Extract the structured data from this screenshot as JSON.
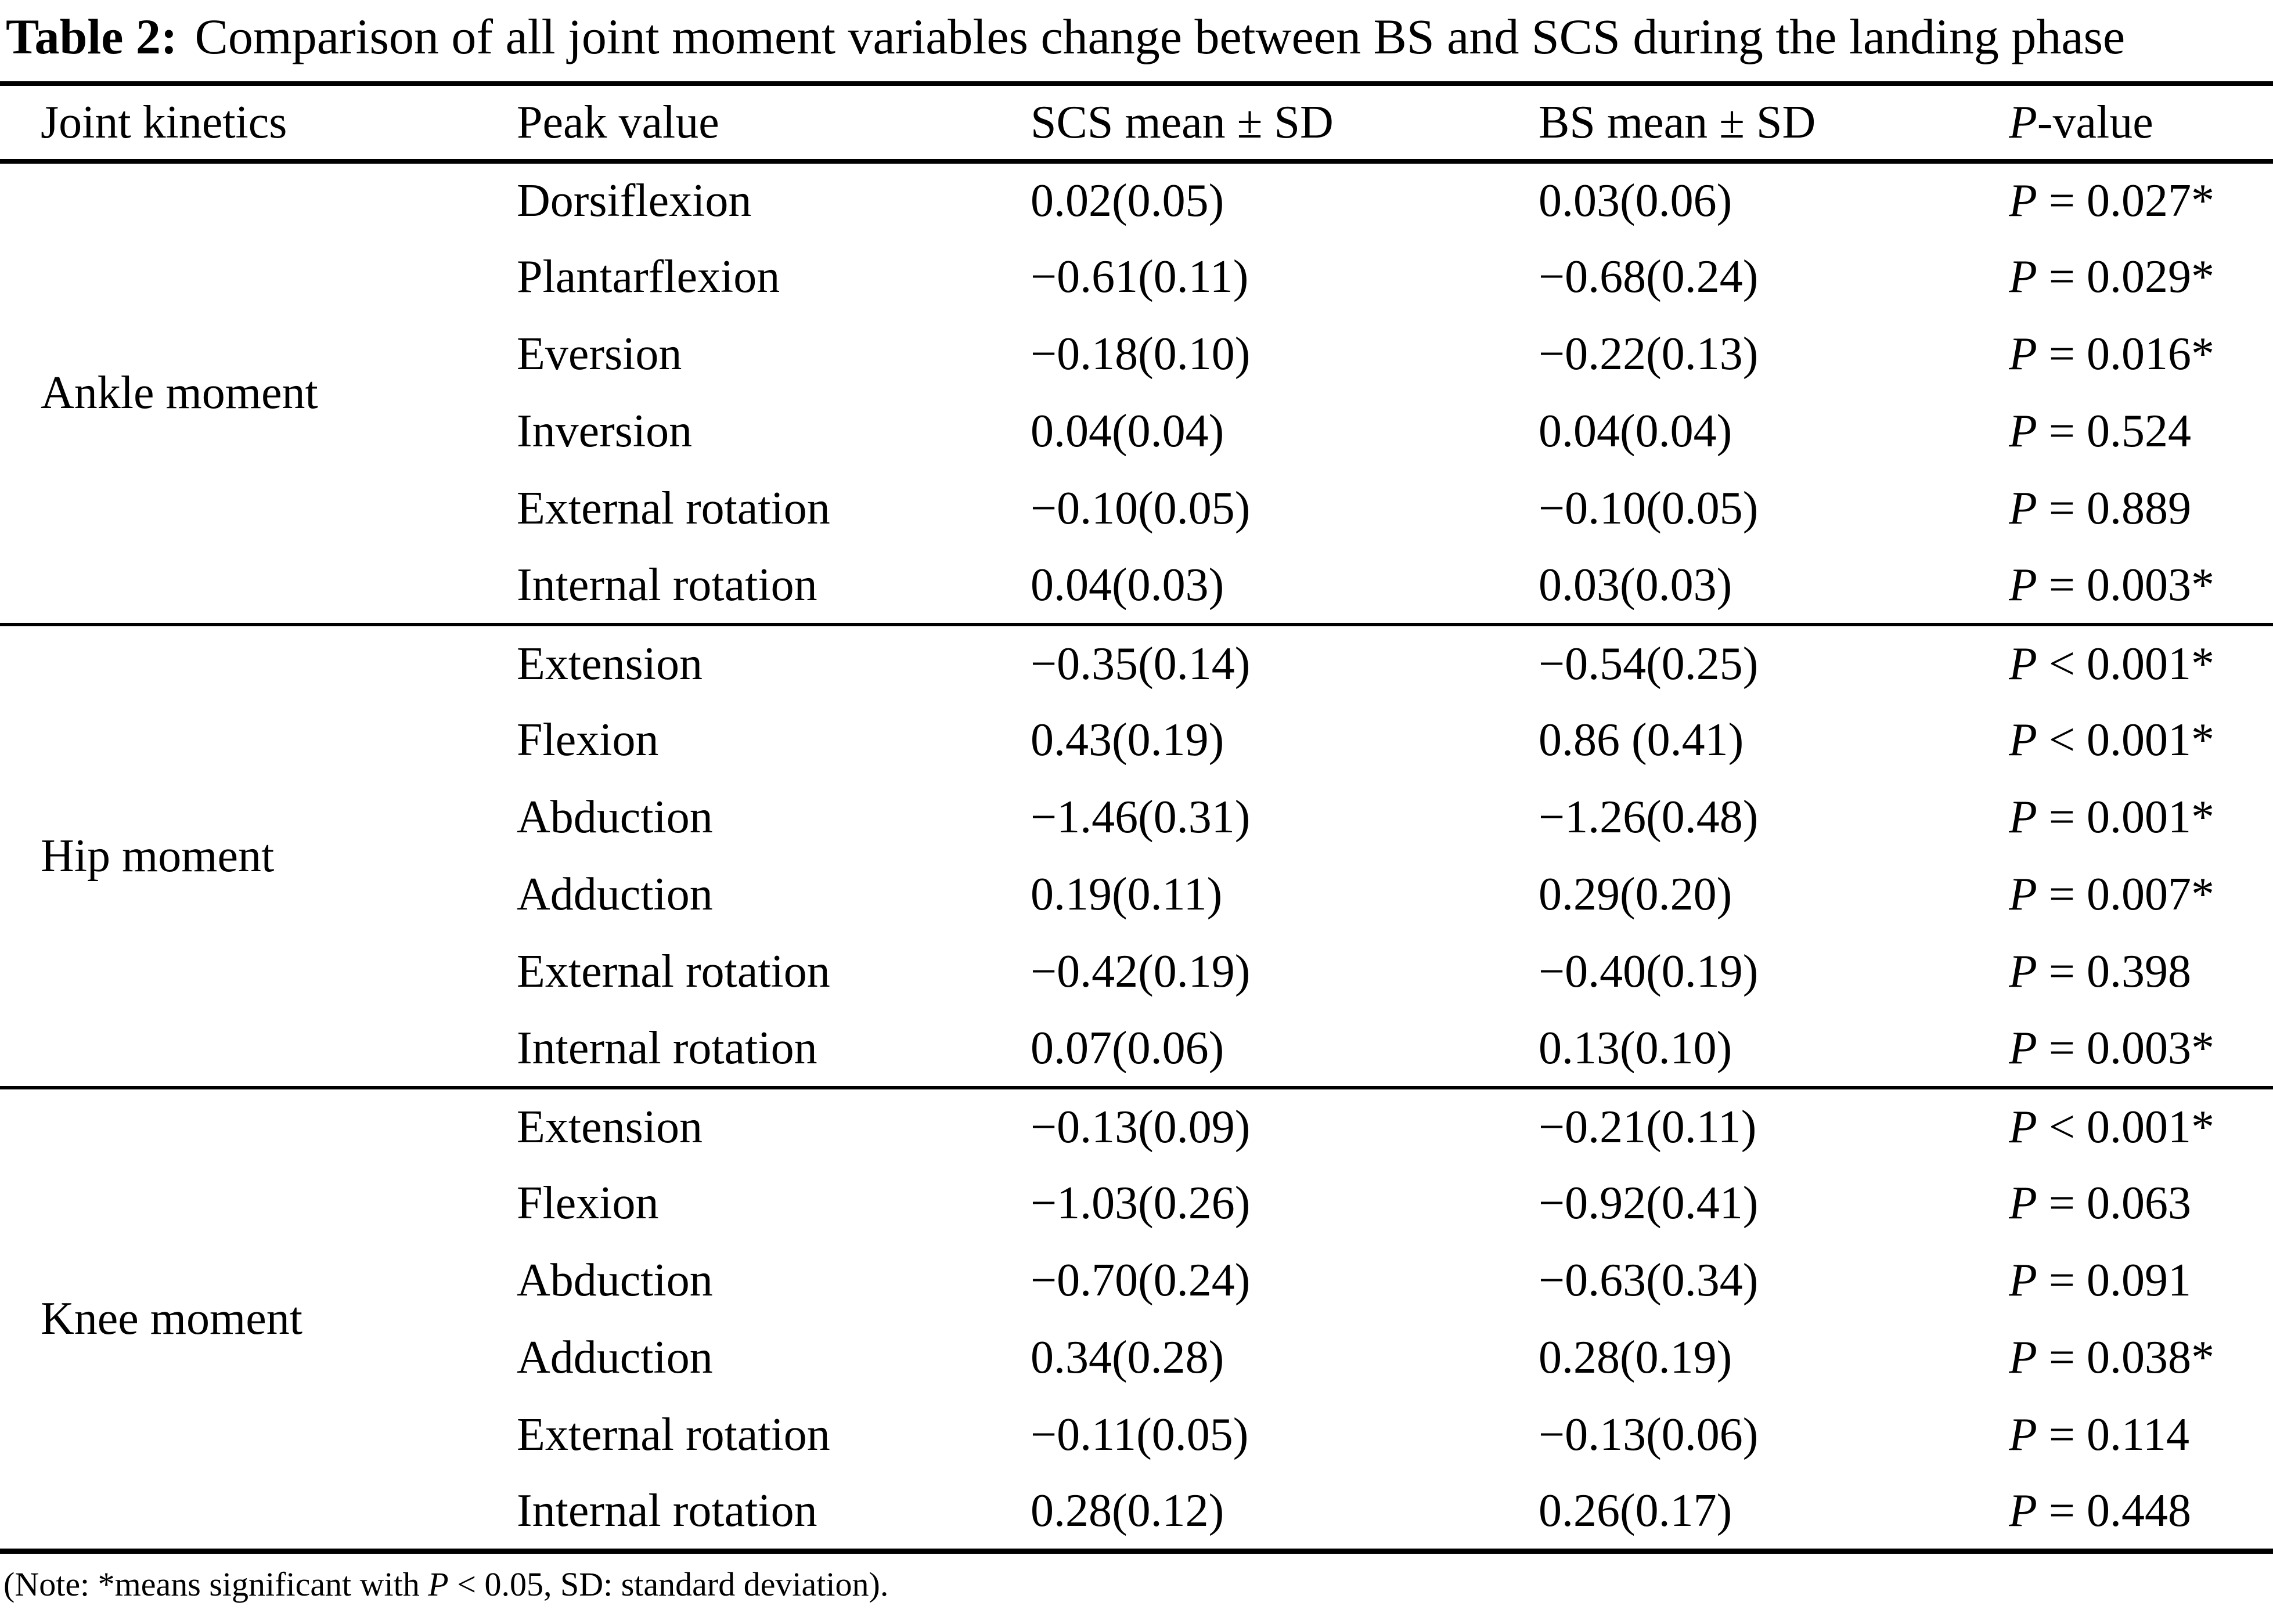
{
  "title": {
    "label": "Table 2:",
    "text": "Comparison of all joint moment variables change between BS and SCS during the landing phase"
  },
  "header": {
    "joint_kinetics": "Joint kinetics",
    "peak_value": "Peak value",
    "scs": "SCS mean ± SD",
    "bs": "BS mean ± SD",
    "p_prefix": "P",
    "p_rest": "-value"
  },
  "groups": [
    {
      "label": "Ankle moment",
      "rows": [
        {
          "peak": "Dorsiflexion",
          "scs": "0.02(0.05)",
          "bs": "0.03(0.06)",
          "p_prefix": "P",
          "p_rest": " = 0.027*"
        },
        {
          "peak": "Plantarflexion",
          "scs": "−0.61(0.11)",
          "bs": "−0.68(0.24)",
          "p_prefix": "P",
          "p_rest": " = 0.029*"
        },
        {
          "peak": "Eversion",
          "scs": "−0.18(0.10)",
          "bs": "−0.22(0.13)",
          "p_prefix": "P",
          "p_rest": " = 0.016*"
        },
        {
          "peak": "Inversion",
          "scs": "0.04(0.04)",
          "bs": "0.04(0.04)",
          "p_prefix": "P",
          "p_rest": " = 0.524"
        },
        {
          "peak": "External rotation",
          "scs": "−0.10(0.05)",
          "bs": "−0.10(0.05)",
          "p_prefix": "P",
          "p_rest": " = 0.889"
        },
        {
          "peak": "Internal rotation",
          "scs": "0.04(0.03)",
          "bs": "0.03(0.03)",
          "p_prefix": "P",
          "p_rest": " = 0.003*"
        }
      ]
    },
    {
      "label": "Hip moment",
      "rows": [
        {
          "peak": "Extension",
          "scs": "−0.35(0.14)",
          "bs": "−0.54(0.25)",
          "p_prefix": "P",
          "p_rest": " < 0.001*"
        },
        {
          "peak": "Flexion",
          "scs": "0.43(0.19)",
          "bs": "0.86 (0.41)",
          "p_prefix": "P",
          "p_rest": " < 0.001*"
        },
        {
          "peak": "Abduction",
          "scs": "−1.46(0.31)",
          "bs": "−1.26(0.48)",
          "p_prefix": "P",
          "p_rest": " = 0.001*"
        },
        {
          "peak": "Adduction",
          "scs": "0.19(0.11)",
          "bs": "0.29(0.20)",
          "p_prefix": "P",
          "p_rest": " = 0.007*"
        },
        {
          "peak": "External rotation",
          "scs": "−0.42(0.19)",
          "bs": "−0.40(0.19)",
          "p_prefix": "P",
          "p_rest": " = 0.398"
        },
        {
          "peak": "Internal rotation",
          "scs": "0.07(0.06)",
          "bs": "0.13(0.10)",
          "p_prefix": "P",
          "p_rest": " = 0.003*"
        }
      ]
    },
    {
      "label": "Knee moment",
      "rows": [
        {
          "peak": "Extension",
          "scs": "−0.13(0.09)",
          "bs": "−0.21(0.11)",
          "p_prefix": "P",
          "p_rest": " < 0.001*"
        },
        {
          "peak": "Flexion",
          "scs": "−1.03(0.26)",
          "bs": "−0.92(0.41)",
          "p_prefix": "P",
          "p_rest": " = 0.063"
        },
        {
          "peak": "Abduction",
          "scs": "−0.70(0.24)",
          "bs": "−0.63(0.34)",
          "p_prefix": "P",
          "p_rest": " = 0.091"
        },
        {
          "peak": "Adduction",
          "scs": "0.34(0.28)",
          "bs": "0.28(0.19)",
          "p_prefix": "P",
          "p_rest": " = 0.038*"
        },
        {
          "peak": "External rotation",
          "scs": "−0.11(0.05)",
          "bs": "−0.13(0.06)",
          "p_prefix": "P",
          "p_rest": " = 0.114"
        },
        {
          "peak": "Internal rotation",
          "scs": "0.28(0.12)",
          "bs": "0.26(0.17)",
          "p_prefix": "P",
          "p_rest": " = 0.448"
        }
      ]
    }
  ],
  "footnote": {
    "pre": "(Note: *means significant with ",
    "p": "P",
    "post": " < 0.05, SD: standard deviation)."
  }
}
